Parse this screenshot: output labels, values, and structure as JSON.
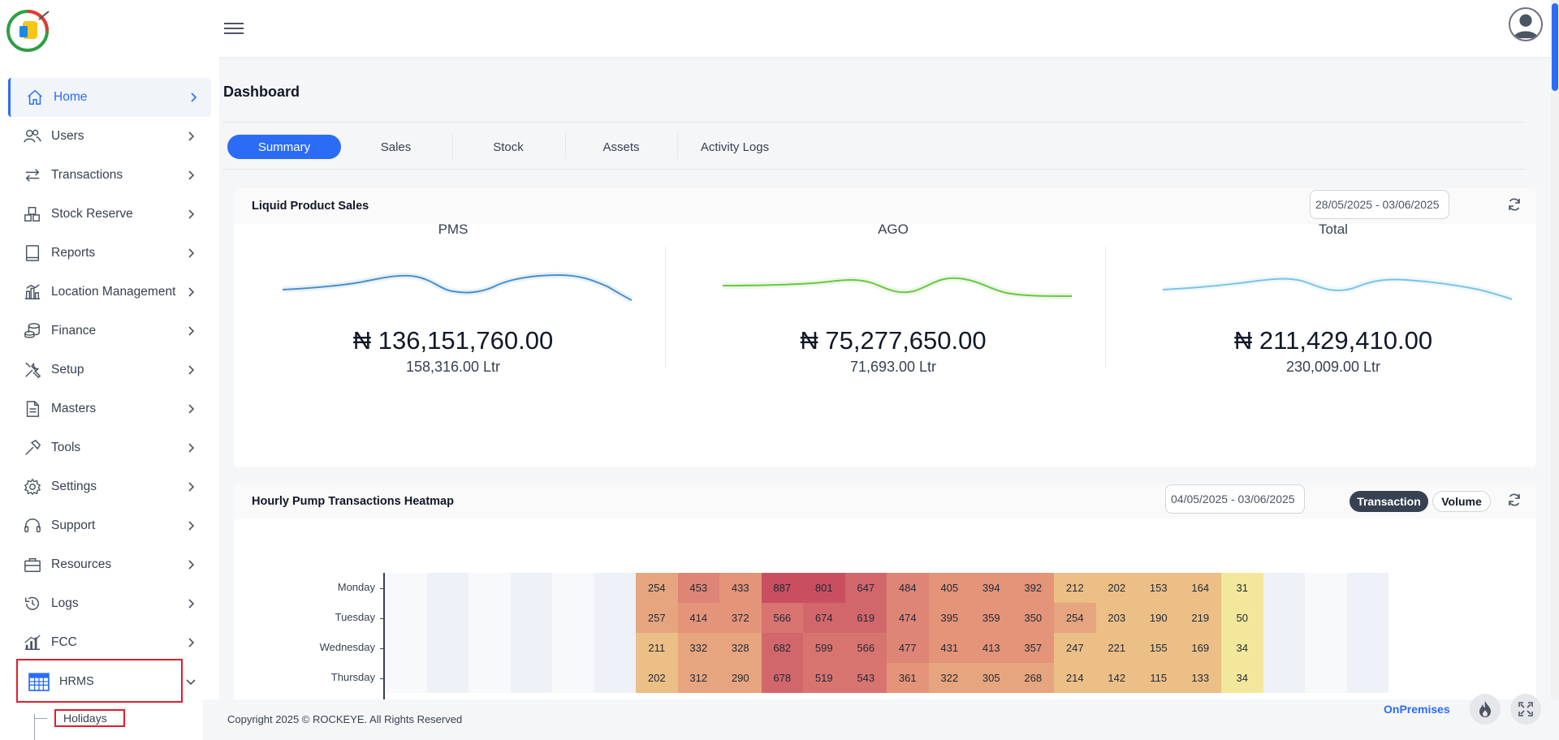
{
  "header": {
    "menu_icon": "hamburger-icon",
    "avatar_icon": "user-avatar-icon"
  },
  "sidebar": {
    "items": [
      {
        "label": "Home",
        "icon": "home-icon",
        "active": true
      },
      {
        "label": "Users",
        "icon": "users-icon"
      },
      {
        "label": "Transactions",
        "icon": "arrows-exchange-icon"
      },
      {
        "label": "Stock Reserve",
        "icon": "boxes-icon"
      },
      {
        "label": "Reports",
        "icon": "report-icon"
      },
      {
        "label": "Location Management",
        "icon": "building-chart-icon"
      },
      {
        "label": "Finance",
        "icon": "coins-icon"
      },
      {
        "label": "Setup",
        "icon": "tools-icon"
      },
      {
        "label": "Masters",
        "icon": "document-icon"
      },
      {
        "label": "Tools",
        "icon": "hammer-icon"
      },
      {
        "label": "Settings",
        "icon": "gear-icon"
      },
      {
        "label": "Support",
        "icon": "headset-icon"
      },
      {
        "label": "Resources",
        "icon": "briefcase-icon"
      },
      {
        "label": "Logs",
        "icon": "history-icon"
      },
      {
        "label": "FCC",
        "icon": "bar-chart-icon"
      },
      {
        "label": "HRMS",
        "icon": "calendar-icon",
        "expanded": true
      }
    ],
    "subitem": "Holidays"
  },
  "main": {
    "title": "Dashboard",
    "tabs": [
      "Summary",
      "Sales",
      "Stock",
      "Assets",
      "Activity Logs"
    ],
    "active_tab": "Summary"
  },
  "liquid_sales": {
    "title": "Liquid Product Sales",
    "date_range": "28/05/2025 - 03/06/2025",
    "products": [
      {
        "name": "PMS",
        "amount": "₦ 136,151,760.00",
        "volume": "158,316.00 Ltr",
        "color": "#4a90c9"
      },
      {
        "name": "AGO",
        "amount": "₦ 75,277,650.00",
        "volume": "71,693.00 Ltr",
        "color": "#6cc644"
      },
      {
        "name": "Total",
        "amount": "₦ 211,429,410.00",
        "volume": "230,009.00 Ltr",
        "color": "#7cc3e6"
      }
    ]
  },
  "heatmap": {
    "title": "Hourly Pump Transactions Heatmap",
    "date_range": "04/05/2025 - 03/06/2025",
    "toggle": {
      "transaction": "Transaction",
      "volume": "Volume",
      "selected": "Transaction"
    }
  },
  "chart_data": {
    "type": "heatmap",
    "rows": [
      "Monday",
      "Tuesday",
      "Wednesday",
      "Thursday"
    ],
    "cols_total": 24,
    "values": [
      [
        null,
        null,
        null,
        null,
        null,
        null,
        254,
        453,
        433,
        887,
        801,
        647,
        484,
        405,
        394,
        392,
        212,
        202,
        153,
        164,
        31,
        null,
        null,
        null
      ],
      [
        null,
        null,
        null,
        null,
        null,
        null,
        257,
        414,
        372,
        566,
        674,
        619,
        474,
        395,
        359,
        350,
        254,
        203,
        190,
        219,
        50,
        null,
        null,
        null
      ],
      [
        null,
        null,
        null,
        null,
        null,
        null,
        211,
        332,
        328,
        682,
        599,
        566,
        477,
        431,
        413,
        357,
        247,
        221,
        155,
        169,
        34,
        null,
        null,
        null
      ],
      [
        null,
        null,
        null,
        null,
        null,
        null,
        202,
        312,
        290,
        678,
        519,
        543,
        361,
        322,
        305,
        268,
        214,
        142,
        115,
        133,
        34,
        null,
        null,
        null
      ]
    ]
  },
  "footer": {
    "copyright": "Copyright 2025 © ROCKEYE. All Rights Reserved",
    "mode": "OnPremises",
    "fire_icon": "fire-icon",
    "expand_icon": "fullscreen-icon"
  }
}
